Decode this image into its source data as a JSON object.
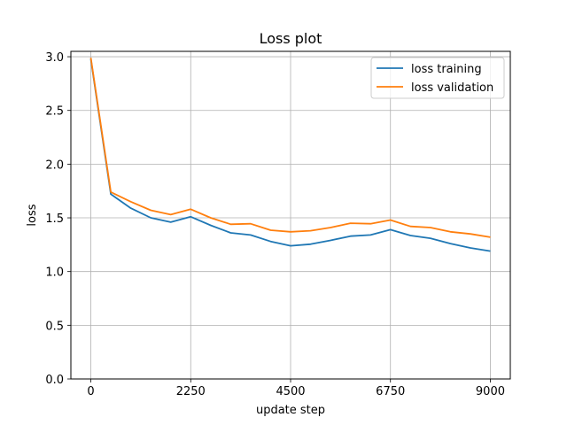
{
  "chart_data": {
    "type": "line",
    "title": "Loss plot",
    "xlabel": "update step",
    "ylabel": "loss",
    "xlim": [
      -450,
      9450
    ],
    "ylim": [
      0,
      3.05
    ],
    "xticks": [
      0,
      2250,
      4500,
      6750,
      9000
    ],
    "yticks": [
      0.0,
      0.5,
      1.0,
      1.5,
      2.0,
      2.5,
      3.0
    ],
    "xtick_labels": [
      "0",
      "2250",
      "4500",
      "6750",
      "9000"
    ],
    "ytick_labels": [
      "0.0",
      "0.5",
      "1.0",
      "1.5",
      "2.0",
      "2.5",
      "3.0"
    ],
    "grid": true,
    "legend_position": "top-right",
    "x": [
      0,
      450,
      900,
      1350,
      1800,
      2250,
      2700,
      3150,
      3600,
      4050,
      4500,
      4950,
      5400,
      5850,
      6300,
      6750,
      7200,
      7650,
      8100,
      8550,
      9000
    ],
    "series": [
      {
        "name": "loss training",
        "color": "#1f77b4",
        "values": [
          2.98,
          1.72,
          1.59,
          1.5,
          1.46,
          1.51,
          1.43,
          1.36,
          1.34,
          1.28,
          1.24,
          1.255,
          1.29,
          1.33,
          1.34,
          1.39,
          1.335,
          1.31,
          1.26,
          1.22,
          1.19
        ]
      },
      {
        "name": "loss validation",
        "color": "#ff7f0e",
        "values": [
          2.99,
          1.74,
          1.65,
          1.57,
          1.53,
          1.58,
          1.5,
          1.44,
          1.445,
          1.385,
          1.37,
          1.38,
          1.41,
          1.45,
          1.445,
          1.48,
          1.42,
          1.41,
          1.37,
          1.35,
          1.32
        ]
      }
    ]
  }
}
